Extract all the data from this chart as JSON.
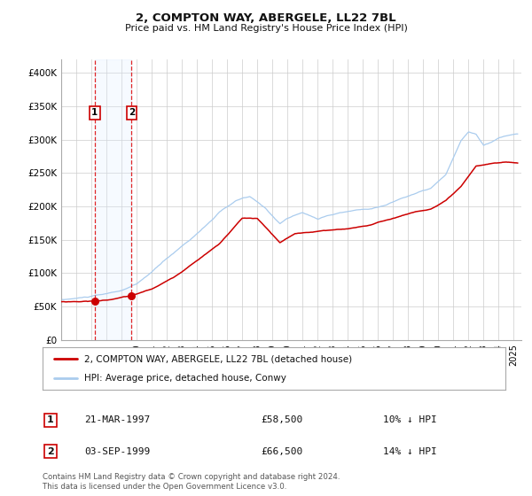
{
  "title": "2, COMPTON WAY, ABERGELE, LL22 7BL",
  "subtitle": "Price paid vs. HM Land Registry's House Price Index (HPI)",
  "legend_label_red": "2, COMPTON WAY, ABERGELE, LL22 7BL (detached house)",
  "legend_label_blue": "HPI: Average price, detached house, Conwy",
  "transaction1_date": "21-MAR-1997",
  "transaction1_price": "£58,500",
  "transaction1_hpi": "10% ↓ HPI",
  "transaction1_year": 1997.22,
  "transaction1_value": 58500,
  "transaction2_date": "03-SEP-1999",
  "transaction2_price": "£66,500",
  "transaction2_hpi": "14% ↓ HPI",
  "transaction2_year": 1999.67,
  "transaction2_value": 66500,
  "footer": "Contains HM Land Registry data © Crown copyright and database right 2024.\nThis data is licensed under the Open Government Licence v3.0.",
  "xlim": [
    1995.0,
    2025.5
  ],
  "ylim": [
    0,
    420000
  ],
  "yticks": [
    0,
    50000,
    100000,
    150000,
    200000,
    250000,
    300000,
    350000,
    400000
  ],
  "ytick_labels": [
    "£0",
    "£50K",
    "£100K",
    "£150K",
    "£200K",
    "£250K",
    "£300K",
    "£350K",
    "£400K"
  ],
  "xticks": [
    1995,
    1996,
    1997,
    1998,
    1999,
    2000,
    2001,
    2002,
    2003,
    2004,
    2005,
    2006,
    2007,
    2008,
    2009,
    2010,
    2011,
    2012,
    2013,
    2014,
    2015,
    2016,
    2017,
    2018,
    2019,
    2020,
    2021,
    2022,
    2023,
    2024,
    2025
  ],
  "background_color": "#ffffff",
  "plot_bg_color": "#ffffff",
  "grid_color": "#cccccc",
  "red_color": "#cc0000",
  "blue_color": "#aaccee",
  "shade_color": "#ddeeff",
  "dashed_color": "#dd0000",
  "hpi_key_x": [
    1995.0,
    1996.0,
    1997.0,
    1998.0,
    1999.0,
    2000.0,
    2001.0,
    2002.0,
    2003.5,
    2004.5,
    2005.5,
    2006.5,
    2007.0,
    2007.5,
    2008.5,
    2009.5,
    2010.0,
    2011.0,
    2012.0,
    2012.5,
    2013.5,
    2014.5,
    2015.5,
    2016.5,
    2017.5,
    2018.5,
    2019.5,
    2020.5,
    2021.0,
    2021.5,
    2022.0,
    2022.5,
    2023.0,
    2023.5,
    2024.0,
    2024.5,
    2025.2
  ],
  "hpi_key_y": [
    60000,
    62000,
    65000,
    68000,
    73000,
    82000,
    100000,
    120000,
    148000,
    168000,
    190000,
    205000,
    210000,
    212000,
    195000,
    172000,
    180000,
    188000,
    178000,
    183000,
    188000,
    192000,
    195000,
    200000,
    210000,
    218000,
    225000,
    245000,
    270000,
    295000,
    308000,
    305000,
    288000,
    292000,
    298000,
    302000,
    304000
  ],
  "red_key_x": [
    1995.0,
    1996.0,
    1997.22,
    1998.0,
    1999.67,
    2001.0,
    2002.5,
    2004.0,
    2005.5,
    2007.0,
    2008.0,
    2009.5,
    2010.5,
    2012.0,
    2013.0,
    2014.0,
    2015.5,
    2017.0,
    2018.5,
    2019.5,
    2020.5,
    2021.5,
    2022.5,
    2023.5,
    2024.5,
    2025.2
  ],
  "red_key_y": [
    57000,
    57500,
    58500,
    60000,
    66500,
    76000,
    94000,
    120000,
    145000,
    183000,
    182000,
    145000,
    158000,
    162000,
    164000,
    166000,
    172000,
    182000,
    192000,
    196000,
    208000,
    228000,
    258000,
    262000,
    264000,
    263000
  ],
  "hpi_noise_seed": 10,
  "red_noise_seed": 20
}
